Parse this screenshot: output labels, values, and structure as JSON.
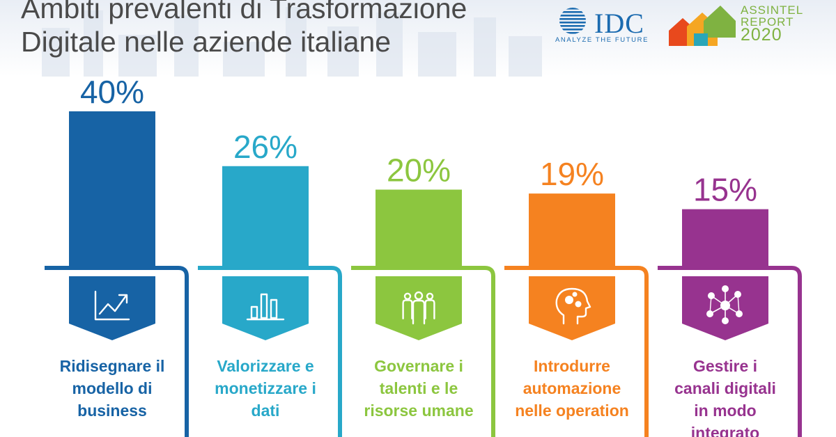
{
  "header": {
    "title_line1": "Ambiti prevalenti di Trasformazione",
    "title_line2": "Digitale nelle aziende italiane"
  },
  "logos": {
    "idc_word": "IDC",
    "idc_tagline": "ANALYZE THE FUTURE",
    "assintel_line1": "ASSINTEL",
    "assintel_line2": "REPORT",
    "assintel_line3": "2020"
  },
  "chart_data": {
    "type": "bar",
    "categories": [
      [
        "Ridisegnare il",
        "modello di",
        "business"
      ],
      [
        "Valorizzare e",
        "monetizzare i",
        "dati"
      ],
      [
        "Governare i",
        "talenti e le",
        "risorse umane"
      ],
      [
        "Introdurre",
        "automazione",
        "nelle operation"
      ],
      [
        "Gestire i",
        "canali digitali",
        "in modo",
        "integrato"
      ]
    ],
    "values": [
      40,
      26,
      20,
      19,
      15
    ],
    "value_labels": [
      "40%",
      "26%",
      "20%",
      "19%",
      "15%"
    ],
    "icons": [
      "growth-chart-icon",
      "bar-chart-icon",
      "people-group-icon",
      "brain-gears-icon",
      "network-people-icon"
    ],
    "colors": [
      "#1763a5",
      "#28a8c9",
      "#8cc63f",
      "#f58220",
      "#97338f"
    ],
    "ylim": [
      0,
      40
    ]
  }
}
